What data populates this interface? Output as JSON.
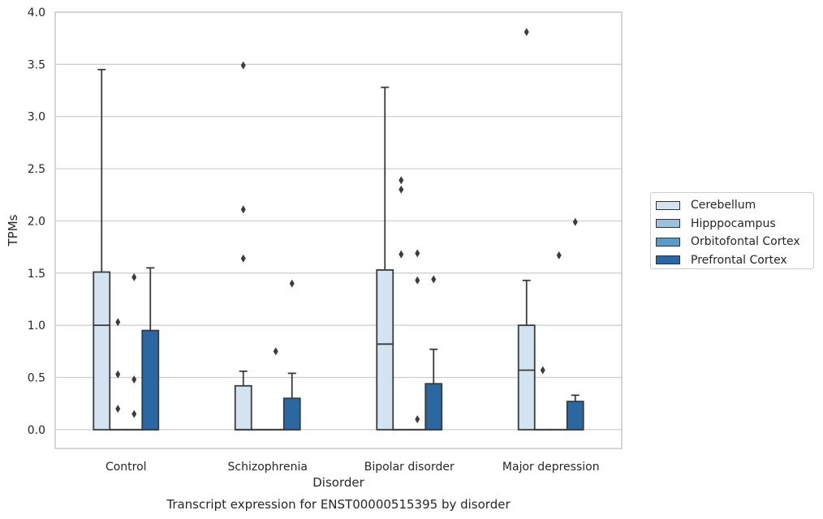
{
  "chart_data": {
    "type": "box",
    "title": "Transcript expression for ENST00000515395 by disorder",
    "xlabel": "Disorder",
    "ylabel": "TPMs",
    "ylim": [
      -0.18,
      4.0
    ],
    "yticks": [
      "0.0",
      "0.5",
      "1.0",
      "1.5",
      "2.0",
      "2.5",
      "3.0",
      "3.5",
      "4.0"
    ],
    "grid": "horizontal",
    "legend_position": "right",
    "categories": [
      "Control",
      "Schizophrenia",
      "Bipolar disorder",
      "Major depression"
    ],
    "series": [
      {
        "name": "Cerebellum",
        "color": "#d3e3f1",
        "boxes": [
          {
            "q1": 0.0,
            "median": 1.0,
            "q3": 1.51,
            "whisker_low": 0.0,
            "whisker_high": 3.45,
            "outliers": []
          },
          {
            "q1": 0.0,
            "median": 0.0,
            "q3": 0.42,
            "whisker_low": 0.0,
            "whisker_high": 0.56,
            "outliers": [
              1.64,
              2.11,
              3.49
            ]
          },
          {
            "q1": 0.0,
            "median": 0.82,
            "q3": 1.53,
            "whisker_low": 0.0,
            "whisker_high": 3.28,
            "outliers": []
          },
          {
            "q1": 0.0,
            "median": 0.57,
            "q3": 1.0,
            "whisker_low": 0.0,
            "whisker_high": 1.43,
            "outliers": [
              3.81
            ]
          }
        ]
      },
      {
        "name": "Hipppocampus",
        "color": "#9ac2dd",
        "boxes": [
          {
            "q1": 0.0,
            "median": 0.0,
            "q3": 0.0,
            "whisker_low": 0.0,
            "whisker_high": 0.0,
            "outliers": [
              0.2,
              0.53,
              1.03
            ]
          },
          {
            "q1": 0.0,
            "median": 0.0,
            "q3": 0.0,
            "whisker_low": 0.0,
            "whisker_high": 0.0,
            "outliers": []
          },
          {
            "q1": 0.0,
            "median": 0.0,
            "q3": 0.0,
            "whisker_low": 0.0,
            "whisker_high": 0.0,
            "outliers": [
              1.68,
              2.3,
              2.39
            ]
          },
          {
            "q1": 0.0,
            "median": 0.0,
            "q3": 0.0,
            "whisker_low": 0.0,
            "whisker_high": 0.0,
            "outliers": [
              0.57
            ]
          }
        ]
      },
      {
        "name": "Orbitofontal Cortex",
        "color": "#5b9bc9",
        "boxes": [
          {
            "q1": 0.0,
            "median": 0.0,
            "q3": 0.0,
            "whisker_low": 0.0,
            "whisker_high": 0.0,
            "outliers": [
              0.15,
              0.48,
              1.46
            ]
          },
          {
            "q1": 0.0,
            "median": 0.0,
            "q3": 0.0,
            "whisker_low": 0.0,
            "whisker_high": 0.0,
            "outliers": [
              0.75
            ]
          },
          {
            "q1": 0.0,
            "median": 0.0,
            "q3": 0.0,
            "whisker_low": 0.0,
            "whisker_high": 0.0,
            "outliers": [
              0.1,
              1.43,
              1.69
            ]
          },
          {
            "q1": 0.0,
            "median": 0.0,
            "q3": 0.0,
            "whisker_low": 0.0,
            "whisker_high": 0.0,
            "outliers": [
              1.67
            ]
          }
        ]
      },
      {
        "name": "Prefrontal Cortex",
        "color": "#2a67a3",
        "boxes": [
          {
            "q1": 0.0,
            "median": 0.0,
            "q3": 0.95,
            "whisker_low": 0.0,
            "whisker_high": 1.55,
            "outliers": []
          },
          {
            "q1": 0.0,
            "median": 0.0,
            "q3": 0.3,
            "whisker_low": 0.0,
            "whisker_high": 0.54,
            "outliers": [
              1.4
            ]
          },
          {
            "q1": 0.0,
            "median": 0.0,
            "q3": 0.44,
            "whisker_low": 0.0,
            "whisker_high": 0.77,
            "outliers": [
              1.44
            ]
          },
          {
            "q1": 0.0,
            "median": 0.0,
            "q3": 0.27,
            "whisker_low": 0.0,
            "whisker_high": 0.33,
            "outliers": [
              1.99
            ]
          }
        ]
      }
    ]
  }
}
